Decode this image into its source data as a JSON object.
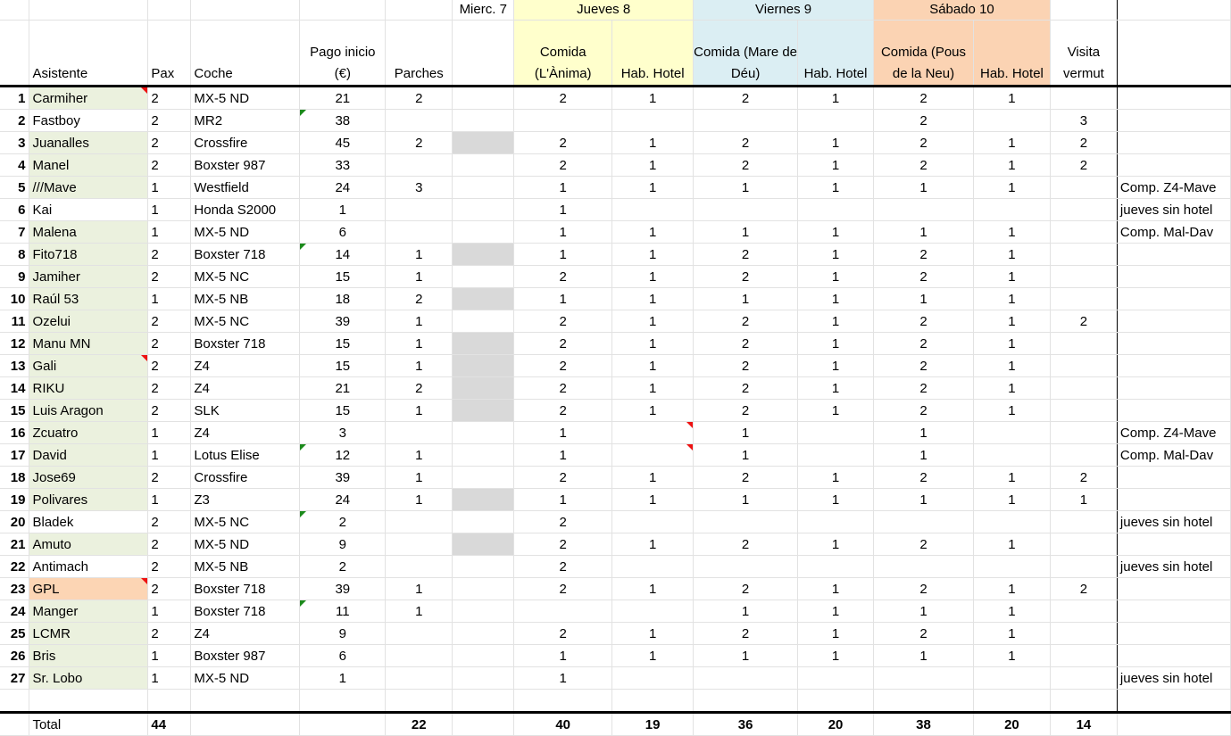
{
  "header": {
    "day_miercoles": "Mierc. 7",
    "day_jueves": "Jueves 8",
    "day_viernes": "Viernes 9",
    "day_sabado": "Sábado 10",
    "col_asistente": "Asistente",
    "col_pax": "Pax",
    "col_coche": "Coche",
    "col_pago": "Pago inicio (€)",
    "col_parches": "Parches",
    "col_j_comida": "Comida (L'Ànima)",
    "col_j_hotel": "Hab. Hotel",
    "col_v_comida": "Comida (Mare de Déu)",
    "col_v_hotel": "Hab. Hotel",
    "col_s_comida": "Comida (Pous de la Neu)",
    "col_s_hotel": "Hab. Hotel",
    "col_vermut": "Visita vermut"
  },
  "rows": [
    {
      "n": "1",
      "name": "Carmiher",
      "pax": "2",
      "coche": "MX-5 ND",
      "pago": "21",
      "parches": "2",
      "jc": "2",
      "jh": "1",
      "vc": "2",
      "vh": "1",
      "sc": "2",
      "sh": "1",
      "verm": "",
      "note": ""
    },
    {
      "n": "2",
      "name": "Fastboy",
      "pax": "2",
      "coche": "MR2",
      "pago": "38",
      "parches": "",
      "jc": "",
      "jh": "",
      "vc": "",
      "vh": "",
      "sc": "2",
      "sh": "",
      "verm": "3",
      "note": ""
    },
    {
      "n": "3",
      "name": "Juanalles",
      "pax": "2",
      "coche": "Crossfire",
      "pago": "45",
      "parches": "2",
      "jc": "2",
      "jh": "1",
      "vc": "2",
      "vh": "1",
      "sc": "2",
      "sh": "1",
      "verm": "2",
      "note": ""
    },
    {
      "n": "4",
      "name": "Manel",
      "pax": "2",
      "coche": "Boxster 987",
      "pago": "33",
      "parches": "",
      "jc": "2",
      "jh": "1",
      "vc": "2",
      "vh": "1",
      "sc": "2",
      "sh": "1",
      "verm": "2",
      "note": ""
    },
    {
      "n": "5",
      "name": "///Mave",
      "pax": "1",
      "coche": "Westfield",
      "pago": "24",
      "parches": "3",
      "jc": "1",
      "jh": "1",
      "vc": "1",
      "vh": "1",
      "sc": "1",
      "sh": "1",
      "verm": "",
      "note": "Comp. Z4-Mave"
    },
    {
      "n": "6",
      "name": "Kai",
      "pax": "1",
      "coche": "Honda S2000",
      "pago": "1",
      "parches": "",
      "jc": "1",
      "jh": "",
      "vc": "",
      "vh": "",
      "sc": "",
      "sh": "",
      "verm": "",
      "note": "jueves sin hotel"
    },
    {
      "n": "7",
      "name": "Malena",
      "pax": "1",
      "coche": "MX-5 ND",
      "pago": "6",
      "parches": "",
      "jc": "1",
      "jh": "1",
      "vc": "1",
      "vh": "1",
      "sc": "1",
      "sh": "1",
      "verm": "",
      "note": "Comp. Mal-Dav"
    },
    {
      "n": "8",
      "name": "Fito718",
      "pax": "2",
      "coche": "Boxster 718",
      "pago": "14",
      "parches": "1",
      "jc": "1",
      "jh": "1",
      "vc": "2",
      "vh": "1",
      "sc": "2",
      "sh": "1",
      "verm": "",
      "note": ""
    },
    {
      "n": "9",
      "name": "Jamiher",
      "pax": "2",
      "coche": "MX-5 NC",
      "pago": "15",
      "parches": "1",
      "jc": "2",
      "jh": "1",
      "vc": "2",
      "vh": "1",
      "sc": "2",
      "sh": "1",
      "verm": "",
      "note": ""
    },
    {
      "n": "10",
      "name": "Raúl 53",
      "pax": "1",
      "coche": "MX-5 NB",
      "pago": "18",
      "parches": "2",
      "jc": "1",
      "jh": "1",
      "vc": "1",
      "vh": "1",
      "sc": "1",
      "sh": "1",
      "verm": "",
      "note": ""
    },
    {
      "n": "11",
      "name": "Ozelui",
      "pax": "2",
      "coche": "MX-5 NC",
      "pago": "39",
      "parches": "1",
      "jc": "2",
      "jh": "1",
      "vc": "2",
      "vh": "1",
      "sc": "2",
      "sh": "1",
      "verm": "2",
      "note": ""
    },
    {
      "n": "12",
      "name": "Manu MN",
      "pax": "2",
      "coche": "Boxster 718",
      "pago": "15",
      "parches": "1",
      "jc": "2",
      "jh": "1",
      "vc": "2",
      "vh": "1",
      "sc": "2",
      "sh": "1",
      "verm": "",
      "note": ""
    },
    {
      "n": "13",
      "name": "Gali",
      "pax": "2",
      "coche": "Z4",
      "pago": "15",
      "parches": "1",
      "jc": "2",
      "jh": "1",
      "vc": "2",
      "vh": "1",
      "sc": "2",
      "sh": "1",
      "verm": "",
      "note": ""
    },
    {
      "n": "14",
      "name": "RIKU",
      "pax": "2",
      "coche": "Z4",
      "pago": "21",
      "parches": "2",
      "jc": "2",
      "jh": "1",
      "vc": "2",
      "vh": "1",
      "sc": "2",
      "sh": "1",
      "verm": "",
      "note": ""
    },
    {
      "n": "15",
      "name": "Luis Aragon",
      "pax": "2",
      "coche": "SLK",
      "pago": "15",
      "parches": "1",
      "jc": "2",
      "jh": "1",
      "vc": "2",
      "vh": "1",
      "sc": "2",
      "sh": "1",
      "verm": "",
      "note": ""
    },
    {
      "n": "16",
      "name": "Zcuatro",
      "pax": "1",
      "coche": "Z4",
      "pago": "3",
      "parches": "",
      "jc": "1",
      "jh": "",
      "vc": "1",
      "vh": "",
      "sc": "1",
      "sh": "",
      "verm": "",
      "note": "Comp. Z4-Mave"
    },
    {
      "n": "17",
      "name": "David",
      "pax": "1",
      "coche": "Lotus Elise",
      "pago": "12",
      "parches": "1",
      "jc": "1",
      "jh": "",
      "vc": "1",
      "vh": "",
      "sc": "1",
      "sh": "",
      "verm": "",
      "note": "Comp. Mal-Dav"
    },
    {
      "n": "18",
      "name": "Jose69",
      "pax": "2",
      "coche": "Crossfire",
      "pago": "39",
      "parches": "1",
      "jc": "2",
      "jh": "1",
      "vc": "2",
      "vh": "1",
      "sc": "2",
      "sh": "1",
      "verm": "2",
      "note": ""
    },
    {
      "n": "19",
      "name": "Polivares",
      "pax": "1",
      "coche": "Z3",
      "pago": "24",
      "parches": "1",
      "jc": "1",
      "jh": "1",
      "vc": "1",
      "vh": "1",
      "sc": "1",
      "sh": "1",
      "verm": "1",
      "note": ""
    },
    {
      "n": "20",
      "name": "Bladek",
      "pax": "2",
      "coche": "MX-5 NC",
      "pago": "2",
      "parches": "",
      "jc": "2",
      "jh": "",
      "vc": "",
      "vh": "",
      "sc": "",
      "sh": "",
      "verm": "",
      "note": "jueves sin hotel"
    },
    {
      "n": "21",
      "name": "Amuto",
      "pax": "2",
      "coche": "MX-5 ND",
      "pago": "9",
      "parches": "",
      "jc": "2",
      "jh": "1",
      "vc": "2",
      "vh": "1",
      "sc": "2",
      "sh": "1",
      "verm": "",
      "note": ""
    },
    {
      "n": "22",
      "name": "Antimach",
      "pax": "2",
      "coche": "MX-5 NB",
      "pago": "2",
      "parches": "",
      "jc": "2",
      "jh": "",
      "vc": "",
      "vh": "",
      "sc": "",
      "sh": "",
      "verm": "",
      "note": "jueves sin hotel"
    },
    {
      "n": "23",
      "name": "GPL",
      "pax": "2",
      "coche": "Boxster 718",
      "pago": "39",
      "parches": "1",
      "jc": "2",
      "jh": "1",
      "vc": "2",
      "vh": "1",
      "sc": "2",
      "sh": "1",
      "verm": "2",
      "note": ""
    },
    {
      "n": "24",
      "name": "Manger",
      "pax": "1",
      "coche": "Boxster 718",
      "pago": "11",
      "parches": "1",
      "jc": "",
      "jh": "",
      "vc": "1",
      "vh": "1",
      "sc": "1",
      "sh": "1",
      "verm": "",
      "note": ""
    },
    {
      "n": "25",
      "name": "LCMR",
      "pax": "2",
      "coche": "Z4",
      "pago": "9",
      "parches": "",
      "jc": "2",
      "jh": "1",
      "vc": "2",
      "vh": "1",
      "sc": "2",
      "sh": "1",
      "verm": "",
      "note": ""
    },
    {
      "n": "26",
      "name": "Bris",
      "pax": "1",
      "coche": "Boxster 987",
      "pago": "6",
      "parches": "",
      "jc": "1",
      "jh": "1",
      "vc": "1",
      "vh": "1",
      "sc": "1",
      "sh": "1",
      "verm": "",
      "note": ""
    },
    {
      "n": "27",
      "name": "Sr. Lobo",
      "pax": "1",
      "coche": "MX-5 ND",
      "pago": "1",
      "parches": "",
      "jc": "1",
      "jh": "",
      "vc": "",
      "vh": "",
      "sc": "",
      "sh": "",
      "verm": "",
      "note": "jueves sin hotel"
    }
  ],
  "total": {
    "label": "Total",
    "pax": "44",
    "parches": "22",
    "jc": "40",
    "jh": "19",
    "vc": "36",
    "vh": "20",
    "sc": "38",
    "sh": "20",
    "verm": "14"
  },
  "colors": {
    "jueves": "#ffffcc",
    "viernes": "#dbeef3",
    "sabado": "#fbd3b3",
    "name_fill": "#ebf1de",
    "gpl_fill": "#fcd5b4",
    "gray_fill": "#d9d9d9",
    "comment_red": "#ee1111",
    "comment_green": "#1b8a1b"
  }
}
